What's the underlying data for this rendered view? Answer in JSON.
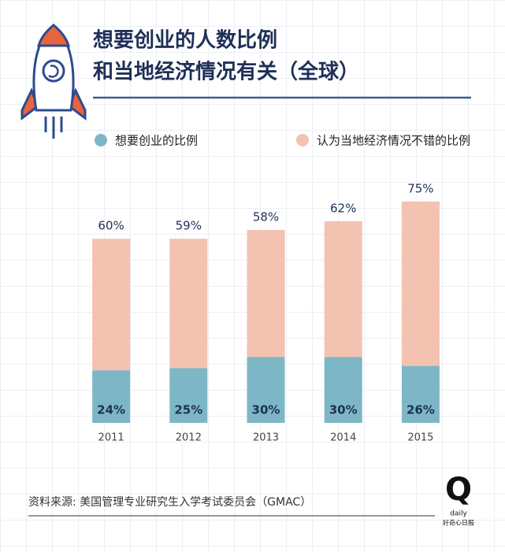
{
  "chart_data": {
    "type": "stacked-bar",
    "title": [
      "想要创业的人数比例",
      "和当地经济情况有关（全球）"
    ],
    "categories": [
      "2011",
      "2012",
      "2013",
      "2014",
      "2015"
    ],
    "series": [
      {
        "name": "想要创业的比例",
        "color": "#7db7c6",
        "values": [
          24,
          25,
          30,
          30,
          26
        ],
        "value_labels": [
          "24%",
          "25%",
          "30%",
          "30%",
          "26%"
        ]
      },
      {
        "name": "认为当地经济情况不错的比例",
        "color": "#f3c2b1",
        "values": [
          60,
          59,
          58,
          62,
          75
        ],
        "value_labels": [
          "60%",
          "59%",
          "58%",
          "62%",
          "75%"
        ]
      }
    ],
    "ylim": [
      0,
      120
    ],
    "source": "资料来源: 美国管理专业研究生入学考试委员会（GMAC）"
  },
  "logo": {
    "mark": "Q",
    "word": "daily",
    "name": "好奇心日报"
  }
}
